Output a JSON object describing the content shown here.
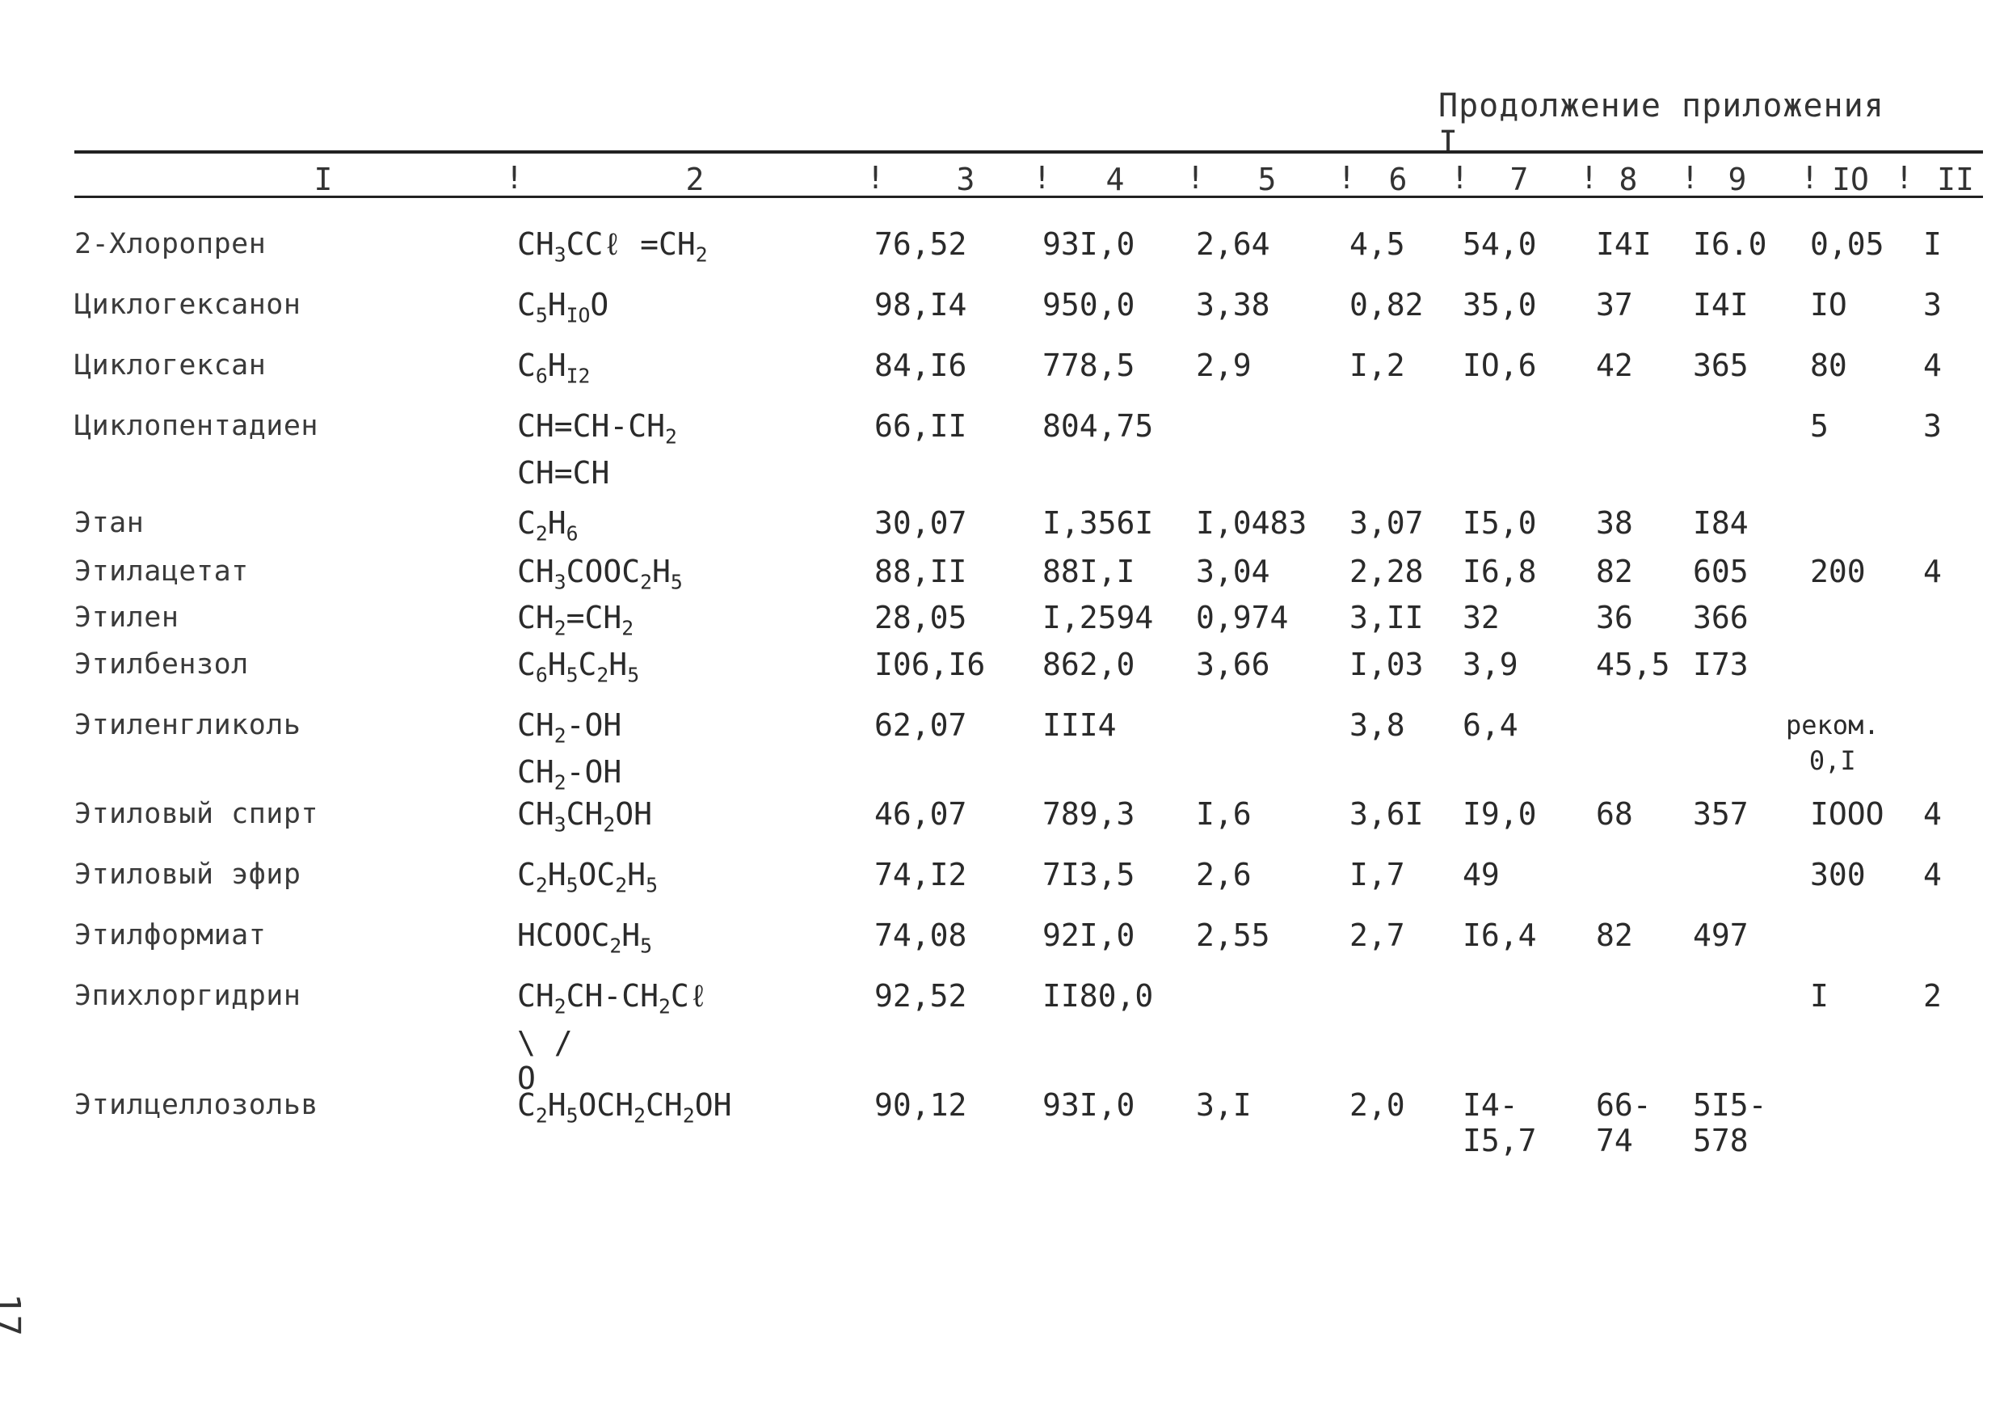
{
  "caption": "Продолжение приложения I",
  "page_number": "17",
  "columns": [
    "I",
    "2",
    "3",
    "4",
    "5",
    "6",
    "7",
    "8",
    "9",
    "IO",
    "II"
  ],
  "rows": [
    {
      "name": "2-Хлоропрен",
      "formula": [
        "CH<sub>3</sub>CCℓ =CH<sub>2</sub>"
      ],
      "c3": "76,52",
      "c4": "93I,0",
      "c5": "2,64",
      "c6": "4,5",
      "c7": "54,0",
      "c8": "I4I",
      "c9": "I6.0",
      "c10": "0,05",
      "c11": "I"
    },
    {
      "name": "Циклогексанон",
      "formula": [
        "C<sub>5</sub>H<sub>IO</sub>O"
      ],
      "c3": "98,I4",
      "c4": "950,0",
      "c5": "3,38",
      "c6": "0,82",
      "c7": "35,0",
      "c8": "37",
      "c9": "I4I",
      "c10": "IO",
      "c11": "3"
    },
    {
      "name": "Циклогексан",
      "formula": [
        "C<sub>6</sub>H<sub>I2</sub>"
      ],
      "c3": "84,I6",
      "c4": "778,5",
      "c5": "2,9",
      "c6": "I,2",
      "c7": "IO,6",
      "c8": "42",
      "c9": "365",
      "c10": "80",
      "c11": "4"
    },
    {
      "name": "Циклопентадиен",
      "formula": [
        "CH=CH-CH<sub>2</sub>",
        "CH=CH"
      ],
      "c3": "66,II",
      "c4": "804,75",
      "c5": "",
      "c6": "",
      "c7": "",
      "c8": "",
      "c9": "",
      "c10": "5",
      "c11": "3"
    },
    {
      "name": "Этан",
      "formula": [
        "C<sub>2</sub>H<sub>6</sub>"
      ],
      "c3": "30,07",
      "c4": "I,356I",
      "c5": "I,0483",
      "c6": "3,07",
      "c7": "I5,0",
      "c8": "38",
      "c9": "I84",
      "c10": "",
      "c11": ""
    },
    {
      "name": "Этилацетат",
      "formula": [
        "CH<sub>3</sub>COOC<sub>2</sub>H<sub>5</sub>"
      ],
      "c3": "88,II",
      "c4": "88I,I",
      "c5": "3,04",
      "c6": "2,28",
      "c7": "I6,8",
      "c8": "82",
      "c9": "605",
      "c10": "200",
      "c11": "4"
    },
    {
      "name": "Этилен",
      "formula": [
        "CH<sub>2</sub>=CH<sub>2</sub>"
      ],
      "c3": "28,05",
      "c4": "I,2594",
      "c5": "0,974",
      "c6": "3,II",
      "c7": "32",
      "c8": "36",
      "c9": "366",
      "c10": "",
      "c11": ""
    },
    {
      "name": "Этилбензол",
      "formula": [
        "C<sub>6</sub>H<sub>5</sub>C<sub>2</sub>H<sub>5</sub>"
      ],
      "c3": "I06,I6",
      "c4": "862,0",
      "c5": "3,66",
      "c6": "I,03",
      "c7": "3,9",
      "c8": "45,5",
      "c9": "I73",
      "c10": "",
      "c11": ""
    },
    {
      "name": "Этиленгликоль",
      "formula": [
        "CH<sub>2</sub>-OH",
        "CH<sub>2</sub>-OH"
      ],
      "c3": "62,07",
      "c4": "III4",
      "c5": "",
      "c6": "3,8",
      "c7": "6,4",
      "c8": "",
      "c9": "",
      "c10": "реком.|0,I",
      "c11": ""
    },
    {
      "name": "Этиловый спирт",
      "formula": [
        "CH<sub>3</sub>CH<sub>2</sub>OH"
      ],
      "c3": "46,07",
      "c4": "789,3",
      "c5": "I,6",
      "c6": "3,6I",
      "c7": "I9,0",
      "c8": "68",
      "c9": "357",
      "c10": "IOOO",
      "c11": "4"
    },
    {
      "name": "Этиловый эфир",
      "formula": [
        "C<sub>2</sub>H<sub>5</sub>OC<sub>2</sub>H<sub>5</sub>"
      ],
      "c3": "74,I2",
      "c4": "7I3,5",
      "c5": "2,6",
      "c6": "I,7",
      "c7": "49",
      "c8": "",
      "c9": "",
      "c10": "300",
      "c11": "4"
    },
    {
      "name": "Этилформиат",
      "formula": [
        "HCOOC<sub>2</sub>H<sub>5</sub>"
      ],
      "c3": "74,08",
      "c4": "92I,0",
      "c5": "2,55",
      "c6": "2,7",
      "c7": "I6,4",
      "c8": "82",
      "c9": "497",
      "c10": "",
      "c11": ""
    },
    {
      "name": "Эпихлоргидрин",
      "formula": [
        "CH<sub>2</sub>CH-CH<sub>2</sub>Cℓ",
        "\\ /",
        "O"
      ],
      "c3": "92,52",
      "c4": "II80,0",
      "c5": "",
      "c6": "",
      "c7": "",
      "c8": "",
      "c9": "",
      "c10": "I",
      "c11": "2"
    },
    {
      "name": "Этилцеллозольв",
      "formula": [
        "C<sub>2</sub>H<sub>5</sub>OCH<sub>2</sub>CH<sub>2</sub>OH"
      ],
      "c3": "90,12",
      "c4": "93I,0",
      "c5": "3,I",
      "c6": "2,0",
      "c7": "I4-|I5,7",
      "c8": "66-|74",
      "c9": "5I5-|578",
      "c10": "",
      "c11": ""
    }
  ]
}
